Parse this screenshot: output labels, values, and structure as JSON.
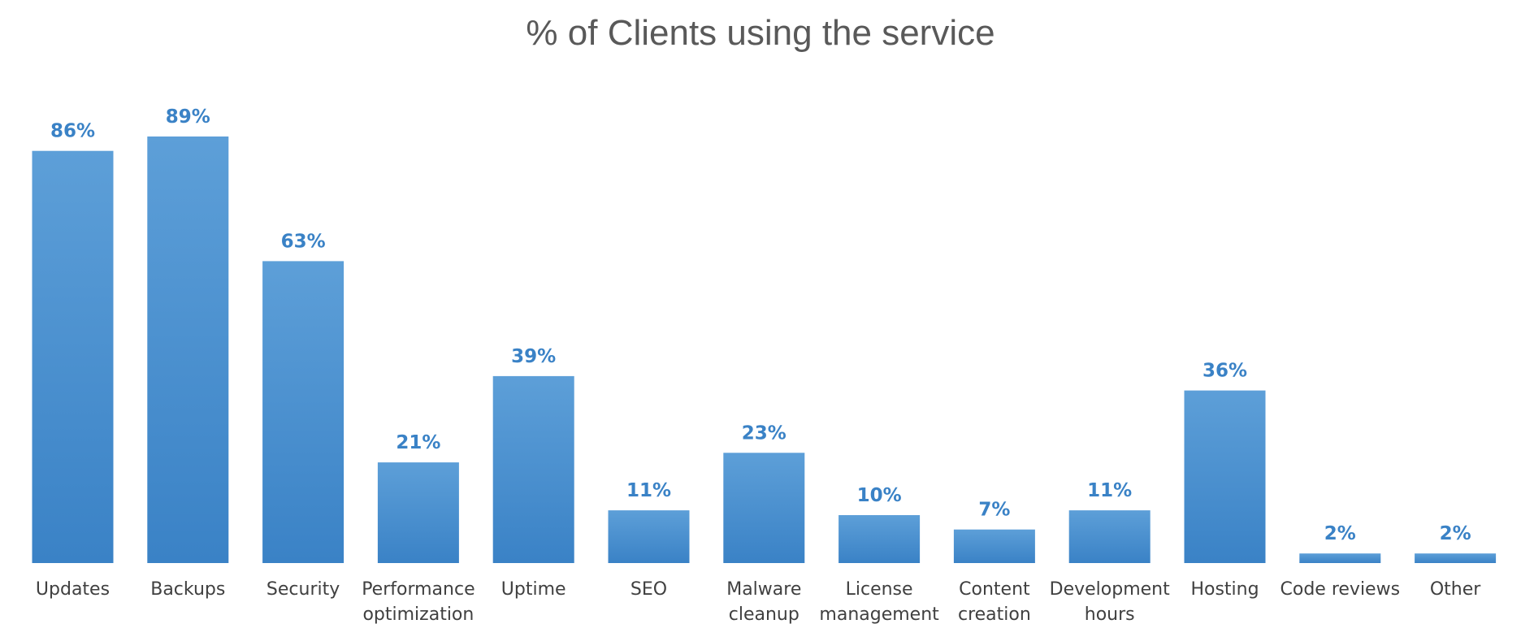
{
  "chart_data": {
    "type": "bar",
    "title": "% of Clients using the service",
    "xlabel": "",
    "ylabel": "",
    "ylim": [
      0,
      100
    ],
    "grid": false,
    "legend": "none",
    "colors": {
      "bar_top": "#5d9fd8",
      "bar_bottom": "#3a82c6",
      "data_label": "#3a82c6",
      "title": "#595959",
      "category_label": "#404040"
    },
    "categories": [
      [
        "Updates"
      ],
      [
        "Backups"
      ],
      [
        "Security"
      ],
      [
        "Performance",
        "optimization"
      ],
      [
        "Uptime"
      ],
      [
        "SEO"
      ],
      [
        "Malware",
        "cleanup"
      ],
      [
        "License",
        "management"
      ],
      [
        "Content",
        "creation"
      ],
      [
        "Development",
        "hours"
      ],
      [
        "Hosting"
      ],
      [
        "Code reviews"
      ],
      [
        "Other"
      ]
    ],
    "values": [
      86,
      89,
      63,
      21,
      39,
      11,
      23,
      10,
      7,
      11,
      36,
      2,
      2
    ],
    "data_labels": [
      "86%",
      "89%",
      "63%",
      "21%",
      "39%",
      "11%",
      "23%",
      "10%",
      "7%",
      "11%",
      "36%",
      "2%",
      "2%"
    ]
  }
}
